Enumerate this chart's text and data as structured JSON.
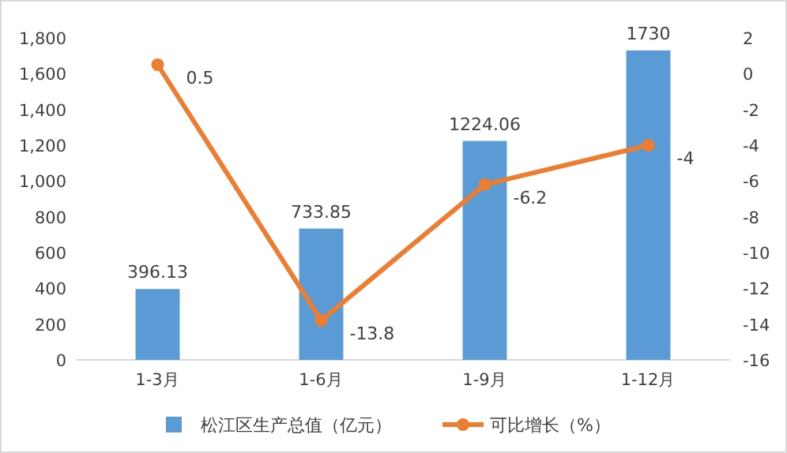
{
  "chart_data": {
    "type": "bar",
    "categories": [
      "1-3月",
      "1-6月",
      "1-9月",
      "1-12月"
    ],
    "series": [
      {
        "name": "松江区生产总值（亿元）",
        "color": "#5b9bd5",
        "values": [
          396.13,
          733.85,
          1224.06,
          1730
        ]
      },
      {
        "name": "可比增长（%）",
        "type": "line",
        "axis": "y2",
        "color": "#ed7d31",
        "marker": "circle",
        "values": [
          0.5,
          -13.8,
          -6.2,
          -4
        ]
      }
    ],
    "ylim": [
      0,
      1800
    ],
    "yticks": [
      0,
      200,
      400,
      600,
      800,
      {
        "value": 1000,
        "label": "1,000"
      },
      {
        "value": 1200,
        "label": "1,200"
      },
      {
        "value": 1400,
        "label": "1,400"
      },
      {
        "value": 1600,
        "label": "1,600"
      },
      {
        "value": 1800,
        "label": "1,800"
      }
    ],
    "y2lim": [
      -16,
      2
    ],
    "y2ticks": [
      -16,
      -14,
      -12,
      -10,
      -8,
      -6,
      -4,
      -2,
      0,
      2
    ],
    "data_labels": true,
    "legend": "bottom"
  }
}
